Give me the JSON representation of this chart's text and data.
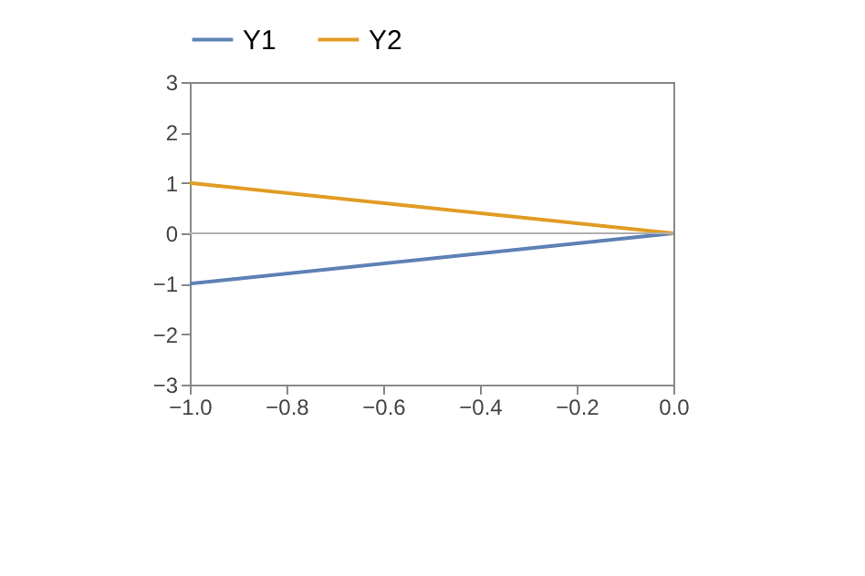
{
  "chart_data": {
    "type": "line",
    "x": [
      -1.0,
      0.0
    ],
    "series": [
      {
        "name": "Y1",
        "color": "#5e81b5",
        "values": [
          -1,
          0
        ]
      },
      {
        "name": "Y2",
        "color": "#e19c24",
        "values": [
          1,
          0
        ]
      }
    ],
    "xlim": [
      -1.0,
      0.0
    ],
    "ylim": [
      -3,
      3
    ],
    "xticks": [
      {
        "value": -1.0,
        "label": "−1.0"
      },
      {
        "value": -0.8,
        "label": "−0.8"
      },
      {
        "value": -0.6,
        "label": "−0.6"
      },
      {
        "value": -0.4,
        "label": "−0.4"
      },
      {
        "value": -0.2,
        "label": "−0.2"
      },
      {
        "value": 0.0,
        "label": "0.0"
      }
    ],
    "yticks": [
      {
        "value": -3,
        "label": "−3"
      },
      {
        "value": -2,
        "label": "−2"
      },
      {
        "value": -1,
        "label": "−1"
      },
      0,
      1,
      2,
      3
    ],
    "ref_lines": [
      {
        "axis": "y",
        "value": 0,
        "color": "#b0b0b0"
      }
    ],
    "legend": "top",
    "grid": false,
    "marker": "none",
    "line_style": "solid"
  }
}
